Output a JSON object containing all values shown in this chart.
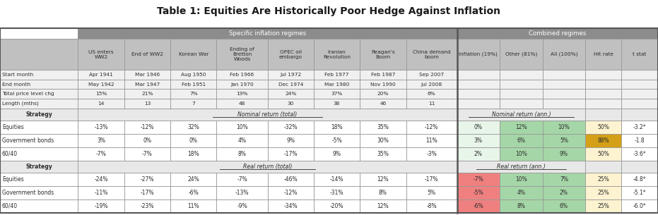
{
  "title": "Table 1: Equities Are Historically Poor Hedge Against Inflation",
  "header_group1": "Specific inflation regimes",
  "header_group2": "Combined regimes",
  "col_headers": [
    "US enters\nWW2",
    "End of WW2",
    "Korean War",
    "Ending of\nBretton\nWoods",
    "OPEC oil\nembargo",
    "Iranian\nRevolution",
    "Reagan's\nBoom",
    "China demand\nboom",
    "Inflation (19%)",
    "Other (81%)",
    "All (100%)",
    "Hit rate",
    "t stat"
  ],
  "row_labels_info": [
    "Start month",
    "End month",
    "Total price level chg",
    "Length (mths)"
  ],
  "info_data": [
    [
      "Apr 1941",
      "Mar 1946",
      "Aug 1950",
      "Feb 1966",
      "Jul 1972",
      "Feb 1977",
      "Feb 1987",
      "Sep 2007",
      "",
      "",
      "",
      "",
      ""
    ],
    [
      "May 1942",
      "Mar 1947",
      "Feb 1951",
      "Jan 1970",
      "Dec 1974",
      "Mar 1980",
      "Nov 1990",
      "Jul 2008",
      "",
      "",
      "",
      "",
      ""
    ],
    [
      "15%",
      "21%",
      "7%",
      "19%",
      "24%",
      "37%",
      "20%",
      "6%",
      "",
      "",
      "",
      "",
      ""
    ],
    [
      "14",
      "13",
      "7",
      "48",
      "30",
      "38",
      "46",
      "11",
      "",
      "",
      "",
      "",
      ""
    ]
  ],
  "section1_label": "Strategy",
  "section1_mid": "Nominal return (total)",
  "section1_right": "Nominal return (ann.)",
  "strategy1_rows": [
    {
      "label": "Equities",
      "values": [
        "-13%",
        "-12%",
        "32%",
        "10%",
        "-32%",
        "18%",
        "35%",
        "-12%",
        "0%",
        "12%",
        "10%",
        "50%",
        "-3.2*"
      ],
      "cell_colors": [
        "",
        "",
        "",
        "",
        "",
        "",
        "",
        "",
        "#e8f5e9",
        "#a5d6a7",
        "#a5d6a7",
        "#fdf3d0",
        ""
      ]
    },
    {
      "label": "Government bonds",
      "values": [
        "3%",
        "0%",
        "0%",
        "4%",
        "9%",
        "-5%",
        "30%",
        "11%",
        "3%",
        "6%",
        "5%",
        "88%",
        "-1.8"
      ],
      "cell_colors": [
        "",
        "",
        "",
        "",
        "",
        "",
        "",
        "",
        "#e8f5e9",
        "#a5d6a7",
        "#a5d6a7",
        "#d4a017",
        ""
      ]
    },
    {
      "label": "60/40",
      "values": [
        "-7%",
        "-7%",
        "18%",
        "8%",
        "-17%",
        "9%",
        "35%",
        "-3%",
        "2%",
        "10%",
        "9%",
        "50%",
        "-3.6*"
      ],
      "cell_colors": [
        "",
        "",
        "",
        "",
        "",
        "",
        "",
        "",
        "#e8f5e9",
        "#a5d6a7",
        "#a5d6a7",
        "#fdf3d0",
        ""
      ]
    }
  ],
  "section2_label": "Strategy",
  "section2_mid": "Real return (total)",
  "section2_right": "Real return (ann.)",
  "strategy2_rows": [
    {
      "label": "Equities",
      "values": [
        "-24%",
        "-27%",
        "24%",
        "-7%",
        "-46%",
        "-14%",
        "12%",
        "-17%",
        "-7%",
        "10%",
        "7%",
        "25%",
        "-4.8*"
      ],
      "cell_colors": [
        "",
        "",
        "",
        "",
        "",
        "",
        "",
        "",
        "#f08080",
        "#a5d6a7",
        "#a5d6a7",
        "#fdf3d0",
        ""
      ]
    },
    {
      "label": "Government bonds",
      "values": [
        "-11%",
        "-17%",
        "-6%",
        "-13%",
        "-12%",
        "-31%",
        "8%",
        "5%",
        "-5%",
        "4%",
        "2%",
        "25%",
        "-5.1*"
      ],
      "cell_colors": [
        "",
        "",
        "",
        "",
        "",
        "",
        "",
        "",
        "#f08080",
        "#a5d6a7",
        "#a5d6a7",
        "#fdf3d0",
        ""
      ]
    },
    {
      "label": "60/40",
      "values": [
        "-19%",
        "-23%",
        "11%",
        "-9%",
        "-34%",
        "-20%",
        "12%",
        "-8%",
        "-6%",
        "8%",
        "6%",
        "25%",
        "-6.0*"
      ],
      "cell_colors": [
        "",
        "",
        "",
        "",
        "",
        "",
        "",
        "",
        "#f08080",
        "#a5d6a7",
        "#a5d6a7",
        "#fdf3d0",
        ""
      ]
    }
  ],
  "bg_color": "#ffffff",
  "header_bg": "#8c8c8c",
  "subheader_bg": "#c0c0c0",
  "info_row_bg": "#f0f0f0",
  "strategy_row_bg": "#e8e8e8",
  "data_row_bg": "#ffffff",
  "grid_color": "#999999",
  "thick_border_color": "#555555",
  "text_color": "#2c2c2c",
  "title_color": "#1a1a1a"
}
